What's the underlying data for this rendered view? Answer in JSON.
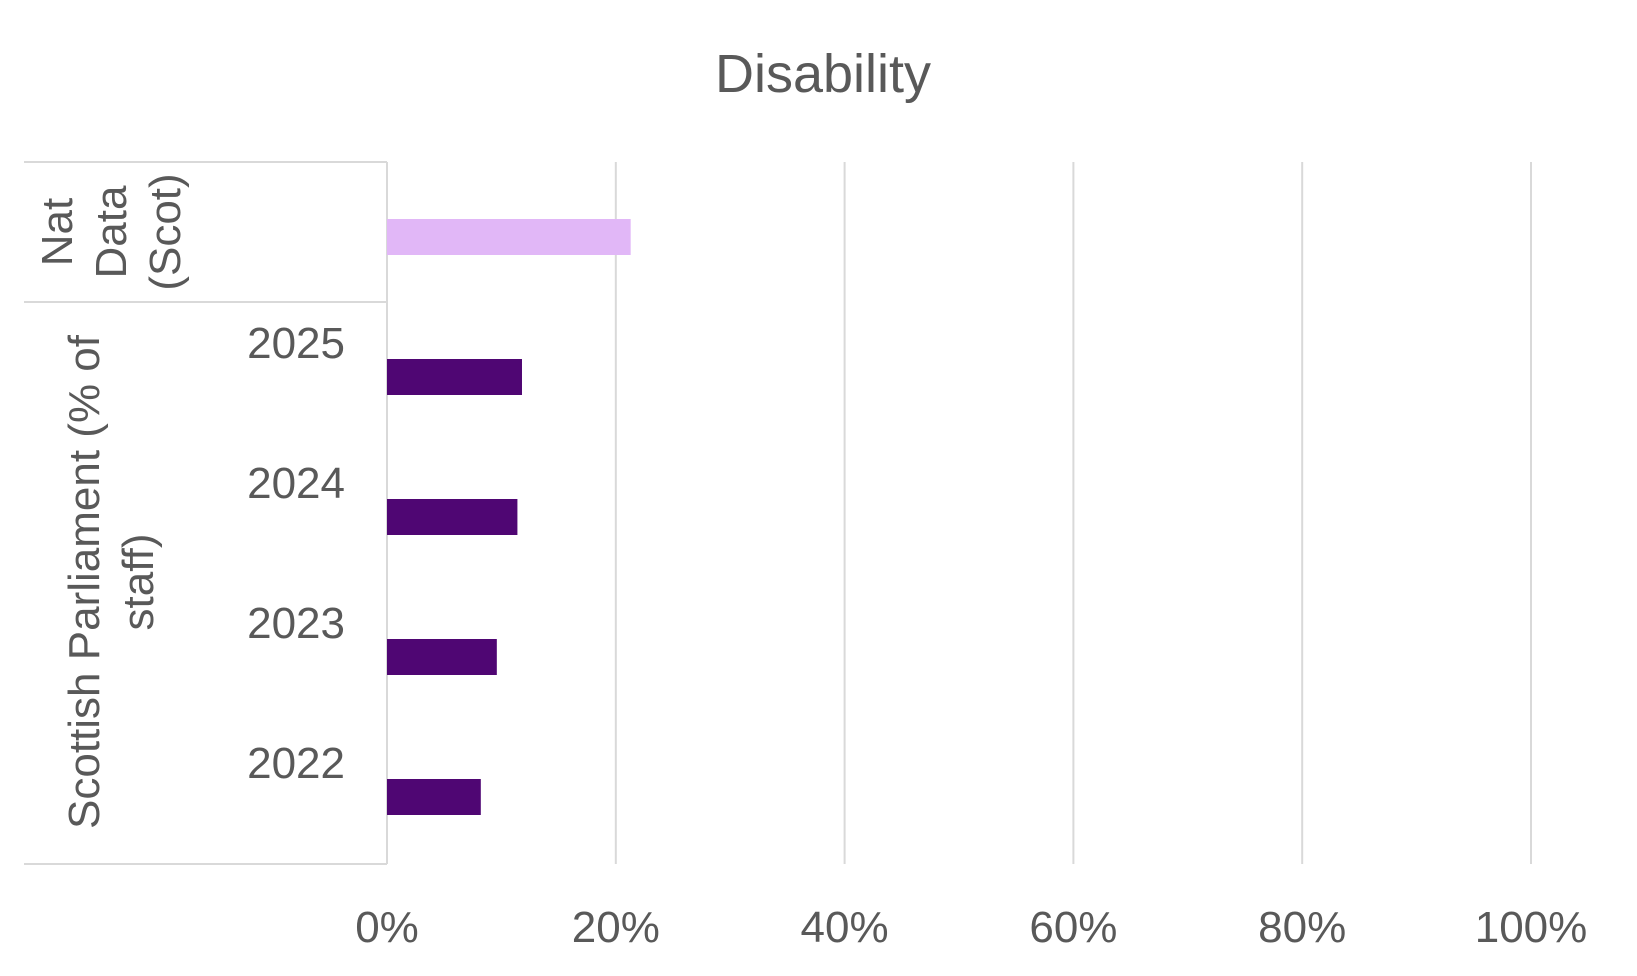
{
  "chart_data": {
    "type": "bar",
    "orientation": "horizontal",
    "title": "Disability",
    "xlabel": "",
    "ylabel": "",
    "xlim": [
      0,
      100
    ],
    "x_ticks": [
      "0%",
      "20%",
      "40%",
      "60%",
      "80%",
      "100%"
    ],
    "grid": true,
    "legend": "none",
    "groups": [
      {
        "label": "Nat Data (Scot)",
        "label_lines": [
          "Nat",
          "Data",
          "(Scot)"
        ],
        "color": "#e1b7f7",
        "bars": [
          {
            "category": "",
            "value": 21.3
          }
        ]
      },
      {
        "label": "Scottish Parliament (% of staff)",
        "label_lines": [
          "Scottish Parliament (% of",
          "staff)"
        ],
        "color": "#4f0673",
        "bars": [
          {
            "category": "2025",
            "value": 11.8
          },
          {
            "category": "2024",
            "value": 11.4
          },
          {
            "category": "2023",
            "value": 9.6
          },
          {
            "category": "2022",
            "value": 8.2
          }
        ]
      }
    ]
  }
}
